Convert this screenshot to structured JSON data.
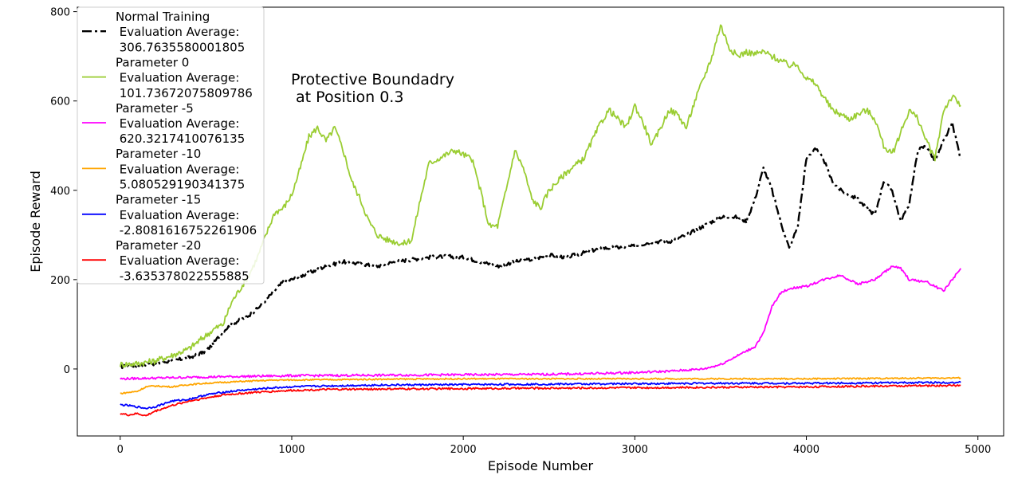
{
  "chart_data": {
    "type": "line",
    "title": "",
    "xlabel": "Episode Number",
    "ylabel": "Episode Reward",
    "xlim": [
      -250,
      5150
    ],
    "ylim": [
      -150,
      810
    ],
    "xticks": [
      0,
      1000,
      2000,
      3000,
      4000,
      5000
    ],
    "yticks": [
      0,
      200,
      400,
      600,
      800
    ],
    "grid": false,
    "legend_position": "top-left",
    "annotation": [
      "Protective Boundadry",
      " at Position 0.3"
    ],
    "series": [
      {
        "name": [
          "Normal Training",
          " Evaluation Average:",
          " 306.7635580001805"
        ],
        "color": "#000000",
        "dash": "dashdot",
        "x": [
          0,
          100,
          200,
          300,
          400,
          500,
          550,
          600,
          650,
          700,
          750,
          800,
          850,
          900,
          950,
          1000,
          1100,
          1200,
          1300,
          1400,
          1500,
          1600,
          1700,
          1800,
          1900,
          2000,
          2100,
          2200,
          2300,
          2400,
          2500,
          2600,
          2700,
          2800,
          2900,
          3000,
          3100,
          3200,
          3300,
          3400,
          3500,
          3600,
          3650,
          3700,
          3750,
          3800,
          3850,
          3900,
          3950,
          4000,
          4050,
          4100,
          4150,
          4200,
          4250,
          4300,
          4350,
          4400,
          4450,
          4500,
          4550,
          4600,
          4650,
          4700,
          4750,
          4800,
          4850,
          4900
        ],
        "y": [
          5,
          8,
          12,
          18,
          25,
          40,
          60,
          85,
          100,
          110,
          120,
          135,
          155,
          175,
          195,
          200,
          215,
          230,
          240,
          235,
          230,
          240,
          245,
          250,
          252,
          250,
          240,
          230,
          240,
          245,
          255,
          250,
          260,
          270,
          272,
          275,
          285,
          285,
          300,
          320,
          340,
          340,
          330,
          380,
          450,
          400,
          330,
          270,
          320,
          470,
          495,
          470,
          420,
          400,
          390,
          380,
          360,
          345,
          420,
          400,
          330,
          370,
          490,
          500,
          465,
          510,
          550,
          470
        ]
      },
      {
        "name": [
          "Parameter 0",
          " Evaluation Average:",
          " 101.73672075809786"
        ],
        "color": "#9acd32",
        "dash": "solid",
        "x": [
          0,
          100,
          200,
          300,
          400,
          500,
          550,
          600,
          650,
          700,
          750,
          800,
          850,
          900,
          950,
          1000,
          1050,
          1100,
          1150,
          1200,
          1250,
          1300,
          1350,
          1400,
          1450,
          1500,
          1550,
          1600,
          1650,
          1700,
          1750,
          1800,
          1850,
          1900,
          1950,
          2000,
          2050,
          2100,
          2150,
          2200,
          2250,
          2300,
          2350,
          2400,
          2450,
          2500,
          2600,
          2700,
          2800,
          2850,
          2900,
          2950,
          3000,
          3050,
          3100,
          3150,
          3200,
          3250,
          3300,
          3350,
          3400,
          3450,
          3500,
          3550,
          3600,
          3650,
          3700,
          3750,
          3800,
          3850,
          3900,
          3950,
          4000,
          4050,
          4100,
          4150,
          4200,
          4250,
          4300,
          4350,
          4400,
          4450,
          4500,
          4550,
          4600,
          4650,
          4700,
          4750,
          4800,
          4850,
          4900
        ],
        "y": [
          10,
          12,
          18,
          30,
          45,
          75,
          90,
          100,
          150,
          180,
          210,
          250,
          300,
          350,
          360,
          390,
          450,
          520,
          540,
          510,
          540,
          490,
          420,
          380,
          330,
          300,
          290,
          285,
          280,
          290,
          380,
          460,
          470,
          480,
          490,
          480,
          470,
          400,
          320,
          320,
          400,
          490,
          450,
          380,
          360,
          400,
          440,
          470,
          550,
          580,
          560,
          540,
          590,
          550,
          500,
          540,
          580,
          570,
          540,
          600,
          650,
          700,
          770,
          720,
          700,
          710,
          705,
          710,
          700,
          690,
          680,
          680,
          650,
          640,
          610,
          580,
          570,
          560,
          570,
          580,
          560,
          500,
          480,
          530,
          580,
          560,
          510,
          470,
          580,
          610,
          590
        ]
      },
      {
        "name": [
          "Parameter -5",
          " Evaluation Average:",
          " 620.3217410076135"
        ],
        "color": "#ff00ff",
        "dash": "solid",
        "x": [
          0,
          500,
          1000,
          1500,
          2000,
          2500,
          2800,
          3000,
          3200,
          3400,
          3500,
          3600,
          3700,
          3750,
          3800,
          3850,
          3900,
          4000,
          4100,
          4200,
          4300,
          4400,
          4500,
          4550,
          4600,
          4700,
          4800,
          4900
        ],
        "y": [
          -22,
          -18,
          -15,
          -14,
          -13,
          -12,
          -10,
          -8,
          -5,
          0,
          10,
          30,
          50,
          80,
          140,
          170,
          180,
          185,
          200,
          210,
          190,
          200,
          230,
          225,
          200,
          195,
          175,
          225
        ]
      },
      {
        "name": [
          "Parameter -10",
          " Evaluation Average:",
          " 5.080529190341375"
        ],
        "color": "#ffa500",
        "dash": "solid",
        "x": [
          0,
          100,
          150,
          200,
          300,
          400,
          500,
          700,
          900,
          1200,
          1500,
          2000,
          2500,
          3000,
          3500,
          4000,
          4500,
          4900
        ],
        "y": [
          -55,
          -50,
          -40,
          -38,
          -40,
          -35,
          -32,
          -28,
          -25,
          -24,
          -23,
          -22,
          -22,
          -22,
          -22,
          -22,
          -21,
          -20
        ]
      },
      {
        "name": [
          "Parameter -15",
          " Evaluation Average:",
          " -2.8081616752261906"
        ],
        "color": "#0000ff",
        "dash": "solid",
        "x": [
          0,
          50,
          100,
          150,
          200,
          300,
          400,
          500,
          600,
          700,
          800,
          900,
          1000,
          1200,
          1500,
          2000,
          2500,
          3000,
          3500,
          4000,
          4500,
          4900
        ],
        "y": [
          -80,
          -82,
          -85,
          -88,
          -85,
          -72,
          -68,
          -58,
          -52,
          -48,
          -45,
          -42,
          -40,
          -38,
          -36,
          -35,
          -34,
          -33,
          -32,
          -32,
          -31,
          -30
        ]
      },
      {
        "name": [
          "Parameter -20",
          " Evaluation Average:",
          " -3.635378022555885"
        ],
        "color": "#ff0000",
        "dash": "solid",
        "x": [
          0,
          50,
          100,
          150,
          200,
          300,
          400,
          500,
          600,
          700,
          800,
          900,
          1000,
          1200,
          1500,
          2000,
          2500,
          3000,
          3500,
          4000,
          4500,
          4900
        ],
        "y": [
          -100,
          -103,
          -100,
          -105,
          -95,
          -82,
          -72,
          -65,
          -58,
          -55,
          -52,
          -50,
          -48,
          -46,
          -45,
          -44,
          -43,
          -42,
          -41,
          -40,
          -38,
          -37
        ]
      }
    ]
  }
}
